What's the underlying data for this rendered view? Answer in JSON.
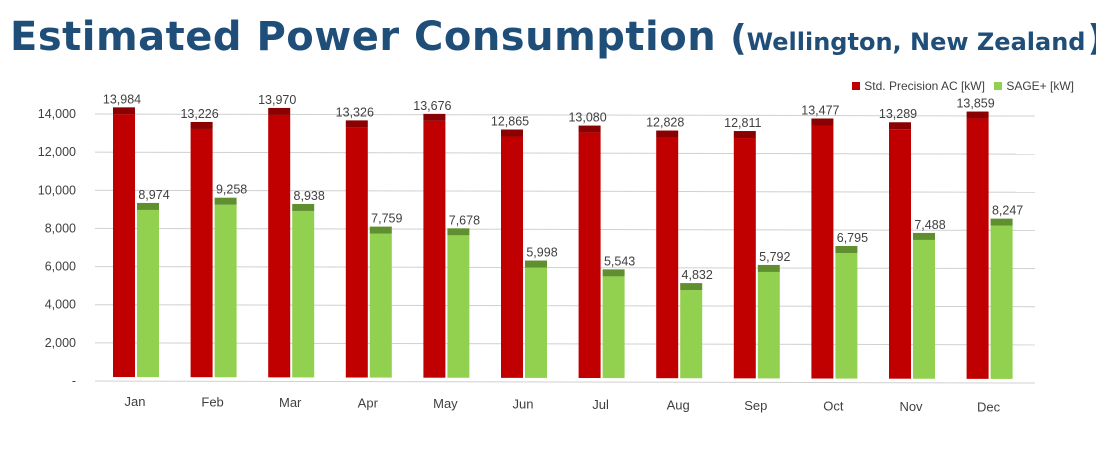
{
  "title": {
    "main": "Estimated Power Consumption",
    "open_paren": "(",
    "subtitle": "Wellington, New Zealand",
    "close_paren": ")"
  },
  "colors": {
    "title": "#1f4e79",
    "series_red": "#c00000",
    "series_red_top": "#8b0000",
    "series_green": "#92d050",
    "series_green_top": "#5f8f2f"
  },
  "chart_data": {
    "type": "bar",
    "categories": [
      "Jan",
      "Feb",
      "Mar",
      "Apr",
      "May",
      "Jun",
      "Jul",
      "Aug",
      "Sep",
      "Oct",
      "Nov",
      "Dec"
    ],
    "series": [
      {
        "name": "Std. Precision AC [kW]",
        "values": [
          13984,
          13226,
          13970,
          13326,
          13676,
          12865,
          13080,
          12828,
          12811,
          13477,
          13289,
          13859
        ],
        "labels": [
          "13,984",
          "13,226",
          "13,970",
          "13,326",
          "13,676",
          "12,865",
          "13,080",
          "12,828",
          "12,811",
          "13,477",
          "13,289",
          "13,859"
        ]
      },
      {
        "name": "SAGE+ [kW]",
        "values": [
          8974,
          9258,
          8938,
          7759,
          7678,
          5998,
          5543,
          4832,
          5792,
          6795,
          7488,
          8247
        ],
        "labels": [
          "8,974",
          "9,258",
          "8,938",
          "7,759",
          "7,678",
          "5,998",
          "5,543",
          "4,832",
          "5,792",
          "6,795",
          "7,488",
          "8,247"
        ]
      }
    ],
    "yticks": [
      "-",
      "2,000",
      "4,000",
      "6,000",
      "8,000",
      "10,000",
      "12,000",
      "14,000"
    ],
    "ytick_values": [
      0,
      2000,
      4000,
      6000,
      8000,
      10000,
      12000,
      14000
    ],
    "ylim": [
      0,
      15000
    ],
    "grid": true,
    "legend_position": "top-right",
    "style": "3d-perspective"
  }
}
